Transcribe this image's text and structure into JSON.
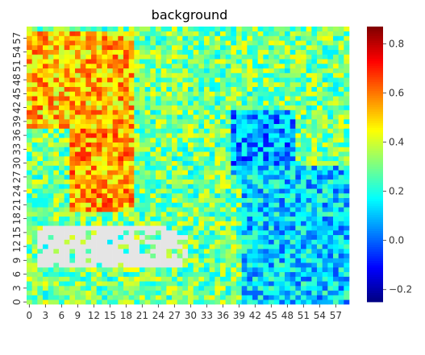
{
  "chart_data": {
    "type": "heatmap",
    "title": "background",
    "xlabel": "",
    "ylabel": "",
    "grid": false,
    "rows": 60,
    "cols": 60,
    "x_tick_labels": [
      "0",
      "3",
      "6",
      "9",
      "12",
      "15",
      "18",
      "21",
      "24",
      "27",
      "30",
      "33",
      "36",
      "39",
      "42",
      "45",
      "48",
      "51",
      "54",
      "57"
    ],
    "y_tick_labels": [
      "0",
      "3",
      "6",
      "9",
      "12",
      "15",
      "18",
      "21",
      "24",
      "27",
      "30",
      "33",
      "36",
      "39",
      "42",
      "45",
      "48",
      "51",
      "54",
      "57"
    ],
    "y_origin": "bottom",
    "colormap": "jet",
    "colorbar": {
      "vmin": -0.25,
      "vmax": 0.87,
      "ticks": [
        -0.2,
        0.0,
        0.2,
        0.4,
        0.6,
        0.8
      ],
      "tick_labels": [
        "−0.2",
        "0.0",
        "0.2",
        "0.4",
        "0.6",
        "0.8"
      ]
    },
    "missing_color": "#e5e5e5",
    "regions": [
      {
        "desc": "upper-left warm band",
        "cols": [
          0,
          20
        ],
        "rows": [
          38,
          59
        ],
        "value": 0.52
      },
      {
        "desc": "left vertical warm strip",
        "cols": [
          8,
          20
        ],
        "rows": [
          20,
          38
        ],
        "value": 0.55
      },
      {
        "desc": "cool blob",
        "cols": [
          38,
          50
        ],
        "rows": [
          28,
          42
        ],
        "value": 0.05
      },
      {
        "desc": "right cool area",
        "cols": [
          40,
          60
        ],
        "rows": [
          0,
          30
        ],
        "value": 0.12
      },
      {
        "desc": "masked (NaN) region",
        "cols": [
          2,
          30
        ],
        "rows": [
          8,
          17
        ],
        "value": null
      }
    ],
    "typical_value": 0.3
  }
}
